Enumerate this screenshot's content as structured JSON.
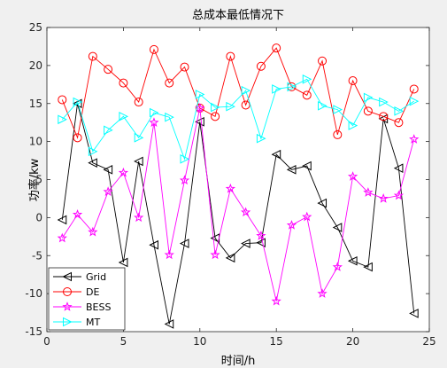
{
  "chart_data": {
    "type": "line",
    "title": "总成本最低情况下",
    "xlabel": "时间/h",
    "ylabel": "功率/kw",
    "xlim": [
      0,
      25
    ],
    "ylim": [
      -15,
      25
    ],
    "xticks": [
      0,
      5,
      10,
      15,
      20,
      25
    ],
    "yticks": [
      -15,
      -10,
      -5,
      0,
      5,
      10,
      15,
      20,
      25
    ],
    "grid": false,
    "legend_position": "bottom-left",
    "x": [
      1,
      2,
      3,
      4,
      5,
      6,
      7,
      8,
      9,
      10,
      11,
      12,
      13,
      14,
      15,
      16,
      17,
      18,
      19,
      20,
      21,
      22,
      23,
      24
    ],
    "series": [
      {
        "name": "Grid",
        "color": "#000000",
        "marker": "triangle-left",
        "values": [
          -0.3,
          15.0,
          7.2,
          6.3,
          -5.9,
          7.4,
          -3.6,
          -14.0,
          -3.4,
          12.6,
          -2.7,
          -5.3,
          -3.4,
          -3.3,
          8.3,
          6.3,
          6.8,
          1.9,
          -1.3,
          -5.7,
          -6.5,
          13.0,
          6.5,
          -12.6
        ]
      },
      {
        "name": "DE",
        "color": "#ff0000",
        "marker": "circle",
        "values": [
          15.5,
          10.5,
          21.2,
          19.5,
          17.7,
          15.2,
          22.1,
          17.7,
          19.8,
          14.4,
          13.3,
          21.2,
          14.8,
          19.9,
          22.3,
          17.2,
          16.1,
          20.6,
          10.9,
          18.0,
          14.0,
          13.3,
          12.5,
          16.9
        ]
      },
      {
        "name": "BESS",
        "color": "#ff00ff",
        "marker": "star",
        "values": [
          -2.7,
          0.4,
          -1.9,
          3.4,
          5.9,
          0.0,
          12.5,
          -4.9,
          4.9,
          14.4,
          -4.9,
          3.8,
          0.7,
          -2.4,
          -11.0,
          -1.0,
          0.1,
          -10.0,
          -6.5,
          5.4,
          3.3,
          2.5,
          2.9,
          10.3
        ]
      },
      {
        "name": "MT",
        "color": "#00ffff",
        "marker": "triangle-right",
        "values": [
          12.9,
          15.2,
          8.7,
          11.5,
          13.3,
          10.5,
          13.8,
          13.2,
          7.7,
          16.2,
          14.5,
          14.6,
          16.7,
          10.4,
          16.9,
          17.2,
          18.2,
          14.7,
          14.2,
          12.1,
          15.8,
          15.2,
          14.0,
          15.3
        ]
      }
    ]
  }
}
